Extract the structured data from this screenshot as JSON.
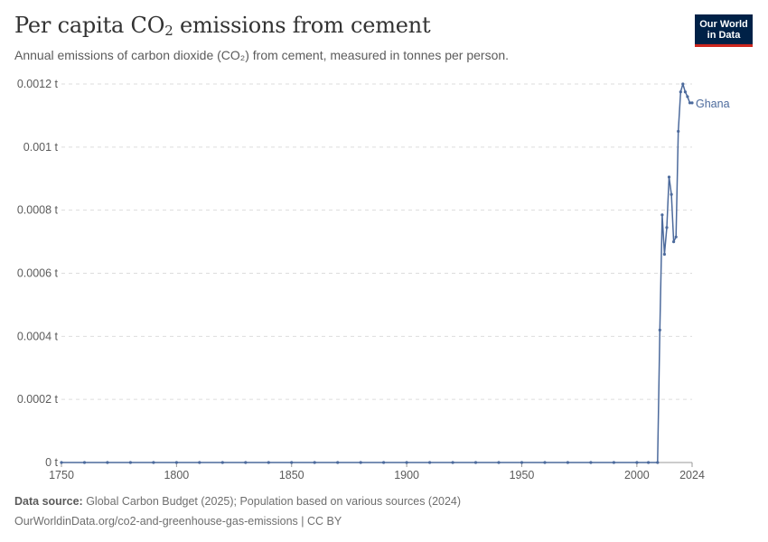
{
  "header": {
    "title_main": "Per capita CO",
    "title_sub": "2",
    "title_rest": " emissions from cement",
    "subtitle": "Annual emissions of carbon dioxide (CO₂) from cement, measured in tonnes per person."
  },
  "logo": {
    "line1": "Our World",
    "line2": "in Data"
  },
  "footer": {
    "source_label": "Data source:",
    "source_text": " Global Carbon Budget (2025); Population based on various sources (2024)",
    "url_text": "OurWorldinData.org/co2-and-greenhouse-gas-emissions | CC BY"
  },
  "chart_data": {
    "type": "line",
    "title": "Per capita CO₂ emissions from cement",
    "subtitle": "Annual emissions of carbon dioxide (CO₂) from cement, measured in tonnes per person.",
    "xlim": [
      1750,
      2024
    ],
    "ylim": [
      0,
      0.0012
    ],
    "x_ticks": [
      1750,
      1800,
      1850,
      1900,
      1950,
      2000,
      2024
    ],
    "y_ticks": [
      0,
      0.0002,
      0.0004,
      0.0006,
      0.0008,
      0.001,
      0.0012
    ],
    "y_tick_labels": [
      "0 t",
      "0.0002 t",
      "0.0004 t",
      "0.0006 t",
      "0.0008 t",
      "0.001 t",
      "0.0012 t"
    ],
    "grid": "horizontal-dashed",
    "series": [
      {
        "name": "Ghana",
        "color": "#4c6a9c",
        "x": [
          1750,
          1760,
          1770,
          1780,
          1790,
          1800,
          1810,
          1820,
          1830,
          1840,
          1850,
          1860,
          1870,
          1880,
          1890,
          1900,
          1910,
          1920,
          1930,
          1940,
          1950,
          1960,
          1970,
          1980,
          1990,
          2000,
          2005,
          2009,
          2010,
          2011,
          2012,
          2013,
          2014,
          2015,
          2016,
          2017,
          2018,
          2019,
          2020,
          2021,
          2022,
          2023,
          2024
        ],
        "y": [
          0,
          0,
          0,
          0,
          0,
          0,
          0,
          0,
          0,
          0,
          0,
          0,
          0,
          0,
          0,
          0,
          0,
          0,
          0,
          0,
          0,
          0,
          0,
          0,
          0,
          0,
          0,
          0,
          0.00042,
          0.000785,
          0.00066,
          0.000745,
          0.000905,
          0.00085,
          0.0007,
          0.000715,
          0.00105,
          0.001175,
          0.0012,
          0.001175,
          0.00116,
          0.00114,
          0.00114
        ]
      }
    ]
  }
}
